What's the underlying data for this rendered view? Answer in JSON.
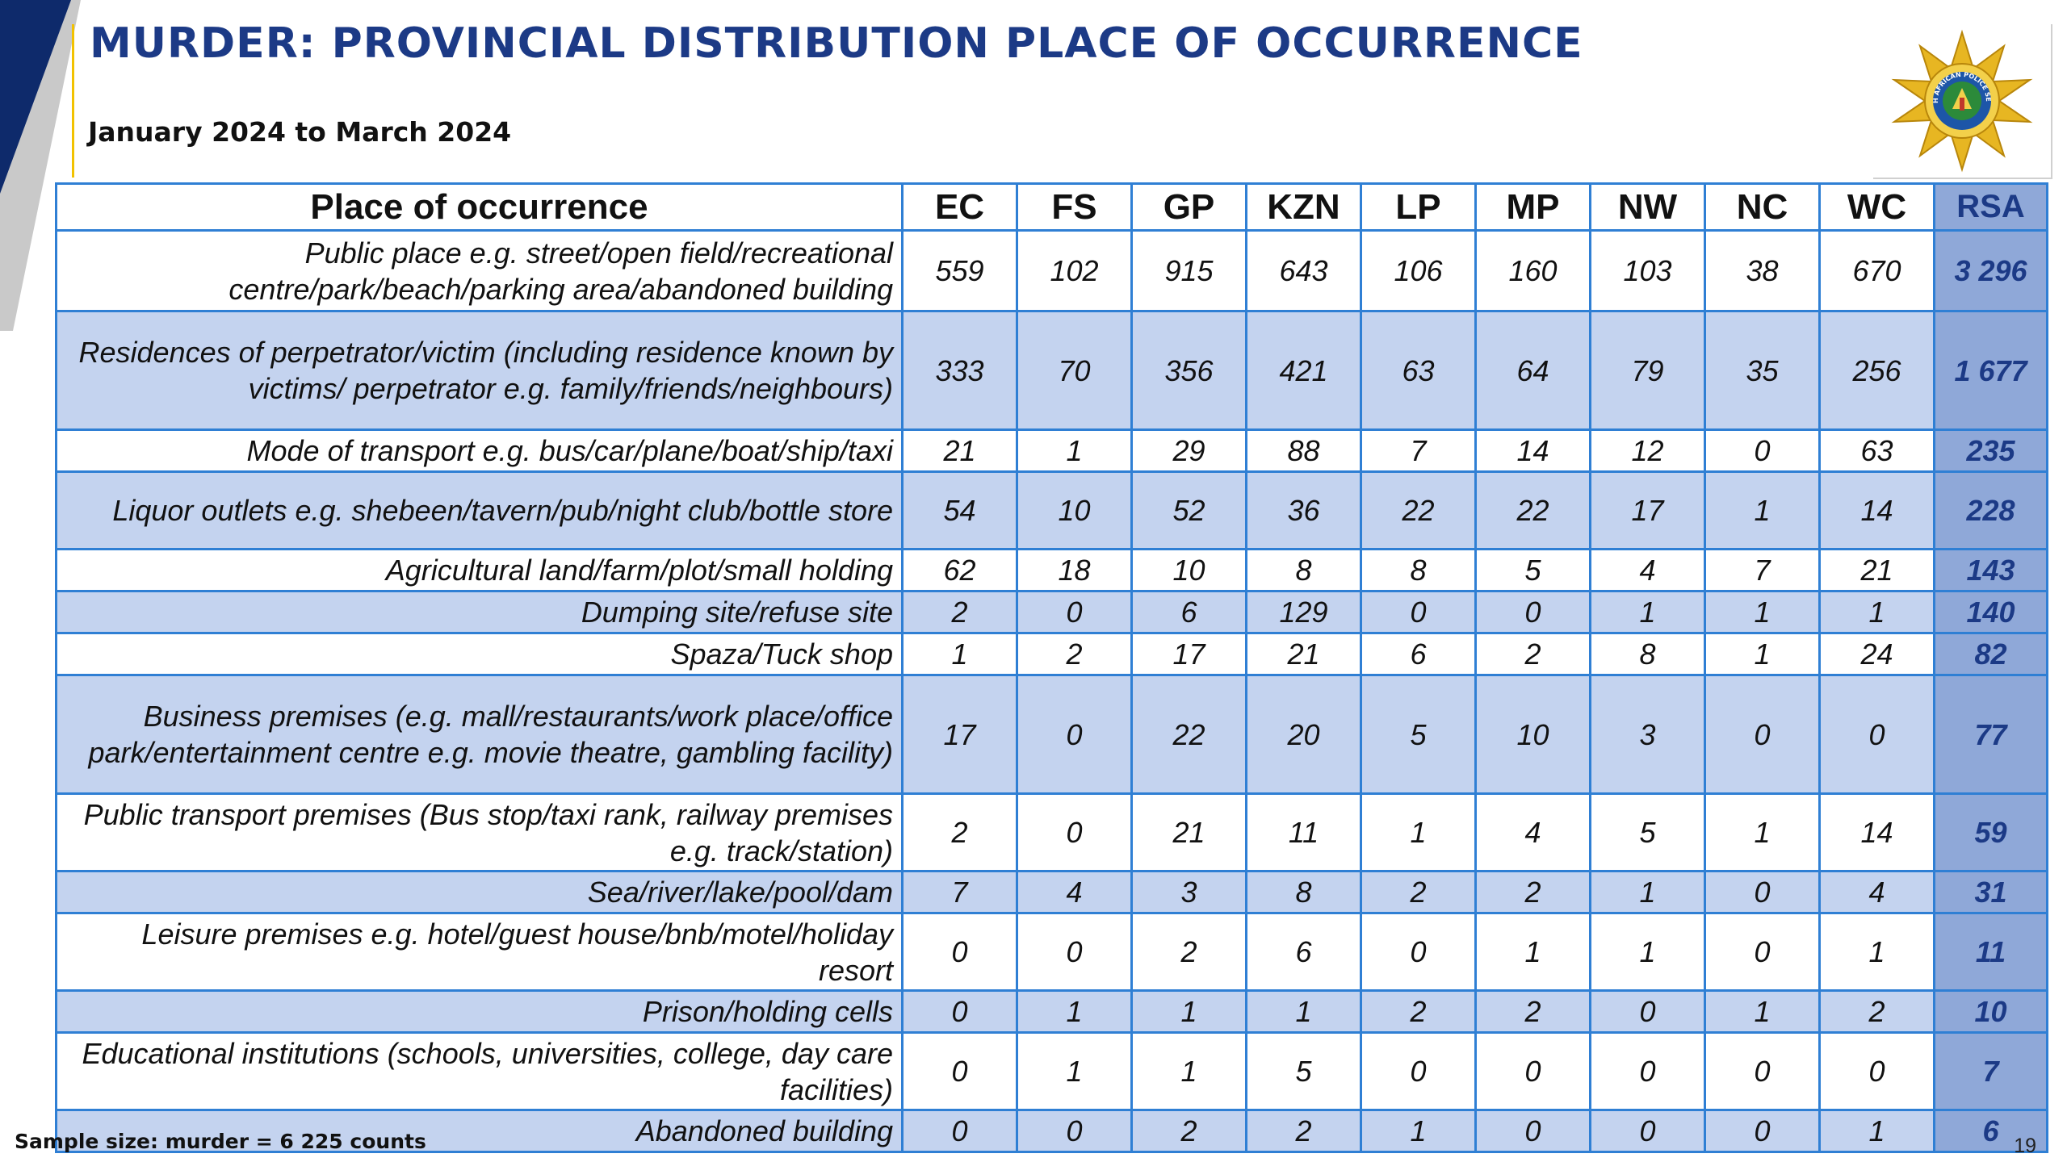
{
  "header": {
    "title": "MURDER: PROVINCIAL DISTRIBUTION PLACE OF OCCURRENCE",
    "subtitle": "January 2024 to March 2024",
    "logo_text": "SOUTH AFRICAN POLICE SERVICE"
  },
  "colors": {
    "title": "#1c3a86",
    "table_border": "#2f7fd4",
    "row_shade": "#c4d3ef",
    "total_column": "#8fa8d8",
    "deco_navy": "#0e2a6b",
    "accent_gold": "#f2c200"
  },
  "table": {
    "headers": [
      "Place of occurrence",
      "EC",
      "FS",
      "GP",
      "KZN",
      "LP",
      "MP",
      "NW",
      "NC",
      "WC",
      "RSA"
    ],
    "rows": [
      {
        "place": "Public place e.g. street/open field/recreational centre/park/beach/parking area/abandoned building",
        "values": [
          "559",
          "102",
          "915",
          "643",
          "106",
          "160",
          "103",
          "38",
          "670"
        ],
        "total": "3 296"
      },
      {
        "place": "Residences of perpetrator/victim (including residence known by victims/ perpetrator e.g. family/friends/neighbours)",
        "values": [
          "333",
          "70",
          "356",
          "421",
          "63",
          "64",
          "79",
          "35",
          "256"
        ],
        "total": "1 677"
      },
      {
        "place": "Mode of transport e.g. bus/car/plane/boat/ship/taxi",
        "values": [
          "21",
          "1",
          "29",
          "88",
          "7",
          "14",
          "12",
          "0",
          "63"
        ],
        "total": "235"
      },
      {
        "place": "Liquor outlets e.g. shebeen/tavern/pub/night club/bottle store",
        "values": [
          "54",
          "10",
          "52",
          "36",
          "22",
          "22",
          "17",
          "1",
          "14"
        ],
        "total": "228"
      },
      {
        "place": "Agricultural land/farm/plot/small holding",
        "values": [
          "62",
          "18",
          "10",
          "8",
          "8",
          "5",
          "4",
          "7",
          "21"
        ],
        "total": "143"
      },
      {
        "place": "Dumping site/refuse site",
        "values": [
          "2",
          "0",
          "6",
          "129",
          "0",
          "0",
          "1",
          "1",
          "1"
        ],
        "total": "140"
      },
      {
        "place": "Spaza/Tuck shop",
        "values": [
          "1",
          "2",
          "17",
          "21",
          "6",
          "2",
          "8",
          "1",
          "24"
        ],
        "total": "82"
      },
      {
        "place": "Business premises (e.g. mall/restaurants/work place/office park/entertainment centre e.g. movie theatre, gambling facility)",
        "values": [
          "17",
          "0",
          "22",
          "20",
          "5",
          "10",
          "3",
          "0",
          "0"
        ],
        "total": "77"
      },
      {
        "place": "Public transport premises (Bus stop/taxi rank, railway premises e.g. track/station)",
        "values": [
          "2",
          "0",
          "21",
          "11",
          "1",
          "4",
          "5",
          "1",
          "14"
        ],
        "total": "59"
      },
      {
        "place": "Sea/river/lake/pool/dam",
        "values": [
          "7",
          "4",
          "3",
          "8",
          "2",
          "2",
          "1",
          "0",
          "4"
        ],
        "total": "31"
      },
      {
        "place": "Leisure premises e.g. hotel/guest house/bnb/motel/holiday resort",
        "values": [
          "0",
          "0",
          "2",
          "6",
          "0",
          "1",
          "1",
          "0",
          "1"
        ],
        "total": "11"
      },
      {
        "place": "Prison/holding cells",
        "values": [
          "0",
          "1",
          "1",
          "1",
          "2",
          "2",
          "0",
          "1",
          "2"
        ],
        "total": "10"
      },
      {
        "place": "Educational institutions (schools, universities, college, day care facilities)",
        "values": [
          "0",
          "1",
          "1",
          "5",
          "0",
          "0",
          "0",
          "0",
          "0"
        ],
        "total": "7"
      },
      {
        "place": "Abandoned building",
        "values": [
          "0",
          "0",
          "2",
          "2",
          "1",
          "0",
          "0",
          "0",
          "1"
        ],
        "total": "6"
      }
    ]
  },
  "footer": {
    "note": "Sample size: murder = 6 225 counts",
    "page_number": "19"
  }
}
